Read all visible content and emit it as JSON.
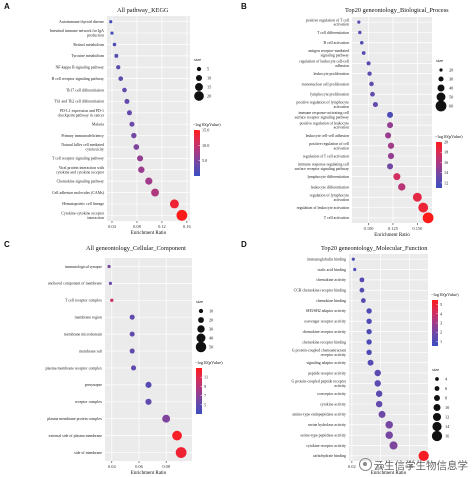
{
  "chart_data": [
    {
      "panel_label": "A",
      "type": "scatter",
      "title": "All pathway_KEGG",
      "xlabel": "Enrichment Ratio",
      "xlim": [
        0.032,
        0.165
      ],
      "xticks": [
        0.04,
        0.08,
        0.12,
        0.16
      ],
      "xtick_labels": [
        "0.04",
        "0.08",
        "0.12",
        "0.16"
      ],
      "size_legend": {
        "title": "size",
        "values": [
          5,
          10,
          15,
          20
        ],
        "labels": [
          "5",
          "10",
          "15",
          "20"
        ],
        "range": [
          2,
          23
        ]
      },
      "color_legend": {
        "title": "−log10(pValue)",
        "range": [
          0,
          15
        ],
        "ticks": [
          5,
          10,
          15
        ],
        "tick_labels": [
          "5.0",
          "10.0",
          "15.0"
        ]
      },
      "terms": [
        "Autoimmune thyroid disease",
        "Intestinal immune network for IgA production",
        "Retinol metabolism",
        "Tyrosine metabolism",
        "NF-kappa B signaling pathway",
        "B cell receptor signaling pathway",
        "Th17 cell differentiation",
        "Th1 and Th2 cell differentiation",
        "PD-L1 expression and PD-1 checkpoint pathway in cancer",
        "Malaria",
        "Primary immunodeficiency",
        "Natural killer cell mediated cytotoxicity",
        "T cell receptor signaling pathway",
        "Viral protein interaction with cytokine and cytokine receptor",
        "Chemokine signaling pathway",
        "Cell adhesion molecules (CAMs)",
        "Hematopoietic cell lineage",
        "Cytokine-cytokine receptor interaction"
      ],
      "ratios": [
        0.038,
        0.04,
        0.044,
        0.047,
        0.05,
        0.054,
        0.06,
        0.064,
        0.068,
        0.072,
        0.075,
        0.079,
        0.085,
        0.087,
        0.099,
        0.109,
        0.14,
        0.152
      ],
      "sizes": [
        2,
        2,
        3,
        4,
        5,
        6,
        6,
        7,
        7,
        7,
        8,
        9,
        10,
        11,
        13,
        15,
        18,
        23
      ],
      "pvalues": [
        0.8,
        1.0,
        1.5,
        1.8,
        2.3,
        2.8,
        3.0,
        3.2,
        3.4,
        3.8,
        4.5,
        5.0,
        6.5,
        7.0,
        7.5,
        8.5,
        13.5,
        15.0
      ]
    },
    {
      "panel_label": "B",
      "type": "scatter",
      "title": "Top20 geneontology_Biological_Process",
      "xlabel": "Enrichment Ratio",
      "xlim": [
        0.083,
        0.165
      ],
      "xticks": [
        0.1,
        0.125,
        0.15
      ],
      "xtick_labels": [
        "0.100",
        "0.125",
        "0.150"
      ],
      "size_legend": {
        "title": "size",
        "values": [
          20,
          30,
          40,
          50,
          60
        ],
        "labels": [
          "20",
          "30",
          "40",
          "50",
          "60"
        ],
        "range": [
          20,
          60
        ]
      },
      "color_legend": {
        "title": "−log10(pValue)",
        "range": [
          11,
          20
        ],
        "ticks": [
          12,
          14,
          16,
          18,
          20
        ],
        "tick_labels": [
          "12",
          "14",
          "16",
          "18",
          "20"
        ]
      },
      "terms": [
        "positive regulation of T cell activation",
        "T cell differentiation",
        "B cell activation",
        "antigen receptor-mediated signaling pathway",
        "regulation of leukocyte cell-cell adhesion",
        "leukocyte proliferation",
        "mononuclear cell proliferation",
        "lymphocyte proliferation",
        "positive regulation of lymphocyte activation",
        "immune response-activating cell surface receptor signaling pathway",
        "positive regulation of leukocyte activation",
        "leukocyte cell-cell adhesion",
        "positive regulation of cell activation",
        "regulation of T cell activation",
        "immune response-regulating cell surface receptor signaling pathway",
        "lymphocyte differentiation",
        "leukocyte differentiation",
        "regulation of lymphocyte activation",
        "regulation of leukocyte activation",
        "T cell activation"
      ],
      "ratios": [
        0.09,
        0.091,
        0.093,
        0.095,
        0.1,
        0.101,
        0.103,
        0.104,
        0.107,
        0.122,
        0.122,
        0.12,
        0.123,
        0.123,
        0.122,
        0.129,
        0.134,
        0.15,
        0.156,
        0.161
      ],
      "sizes": [
        20,
        21,
        22,
        23,
        25,
        26,
        27,
        28,
        30,
        35,
        35,
        35,
        36,
        36,
        35,
        40,
        42,
        50,
        55,
        60
      ],
      "pvalues": [
        12.5,
        12.3,
        12.0,
        12.2,
        12.4,
        12.6,
        12.7,
        12.8,
        13.0,
        11.8,
        15.0,
        15.2,
        15.5,
        15.0,
        13.5,
        17.5,
        16.5,
        18.5,
        19.0,
        20.0
      ]
    },
    {
      "panel_label": "C",
      "type": "scatter",
      "title": "All geneontology_Cellular_Component",
      "xlabel": "Enrichment Ratio",
      "xlim": [
        0.035,
        0.099
      ],
      "xticks": [
        0.04,
        0.06,
        0.08
      ],
      "xtick_labels": [
        "0.04",
        "0.06",
        "0.08"
      ],
      "size_legend": {
        "title": "size",
        "values": [
          10,
          20,
          30,
          40,
          50
        ],
        "labels": [
          "10",
          "20",
          "30",
          "40",
          "50"
        ],
        "range": [
          3,
          52
        ]
      },
      "color_legend": {
        "title": "−log10(pValue)",
        "range": [
          3,
          13
        ],
        "ticks": [
          5,
          7,
          9,
          11
        ],
        "tick_labels": [
          "5",
          "7",
          "9",
          "11"
        ]
      },
      "terms": [
        "immunological synapse",
        "anchored component of membrane",
        "T cell receptor complex",
        "membrane region",
        "membrane microdomain",
        "membrane raft",
        "plasma membrane receptor complex",
        "presynapse",
        "receptor complex",
        "plasma membrane protein complex",
        "external side of plasma membrane",
        "side of membrane"
      ],
      "ratios": [
        0.038,
        0.039,
        0.04,
        0.055,
        0.055,
        0.055,
        0.056,
        0.067,
        0.067,
        0.08,
        0.088,
        0.091
      ],
      "sizes": [
        3,
        3,
        4,
        15,
        15,
        15,
        15,
        22,
        22,
        33,
        45,
        52
      ],
      "pvalues": [
        6.0,
        5.5,
        10.0,
        5.0,
        5.0,
        5.0,
        5.0,
        4.5,
        5.0,
        6.5,
        12.5,
        12.0
      ]
    },
    {
      "panel_label": "D",
      "type": "scatter",
      "title": "Top20 geneontology_Molecular_Function",
      "xlabel": "Enrichment Ratio",
      "xlim": [
        0.018,
        0.073
      ],
      "xticks": [
        0.02,
        0.04,
        0.06
      ],
      "xtick_labels": [
        "0.02",
        "0.04",
        "0.06"
      ],
      "size_legend": {
        "title": "size",
        "values": [
          4,
          6,
          8,
          10,
          12,
          14,
          16
        ],
        "labels": [
          "4",
          "6",
          "8",
          "10",
          "12",
          "14",
          "16"
        ],
        "range": [
          3,
          17
        ]
      },
      "color_legend": {
        "title": "−log10(pValue)",
        "range": [
          0.5,
          5.5
        ],
        "ticks": [
          1,
          2,
          3,
          4,
          5
        ],
        "tick_labels": [
          "1",
          "2",
          "3",
          "4",
          "5"
        ]
      },
      "terms": [
        "immunoglobulin binding",
        "sialic acid binding",
        "chemokine activity",
        "CCR chemokine receptor binding",
        "chemokine binding",
        "SH3/SH2 adaptor activity",
        "scavenger receptor activity",
        "chemokine receptor activity",
        "chemokine receptor binding",
        "G protein-coupled chemoattractant receptor activity",
        "signaling adaptor activity",
        "peptide receptor activity",
        "G protein-coupled peptide receptor activity",
        "coreceptor activity",
        "cytokine activity",
        "amino-type endopeptidase activity",
        "serine hydrolase activity",
        "serine-type peptidase activity",
        "cytokine receptor activity",
        "carbohydrate binding"
      ],
      "ratios": [
        0.021,
        0.022,
        0.027,
        0.027,
        0.028,
        0.032,
        0.032,
        0.032,
        0.032,
        0.032,
        0.033,
        0.038,
        0.038,
        0.039,
        0.039,
        0.041,
        0.046,
        0.046,
        0.049,
        0.07
      ],
      "sizes": [
        3,
        3,
        6,
        6,
        6,
        7,
        7,
        7,
        7,
        7,
        8,
        9,
        9,
        9,
        9,
        10,
        11,
        11,
        12,
        16
      ],
      "pvalues": [
        1.0,
        1.0,
        1.2,
        1.2,
        1.2,
        1.0,
        1.0,
        1.0,
        1.0,
        1.0,
        1.2,
        1.3,
        1.3,
        1.3,
        1.5,
        1.8,
        2.0,
        2.0,
        2.2,
        5.3
      ]
    }
  ],
  "watermark": {
    "text": "云生信学生物信息学",
    "icon": "wechat-icon"
  }
}
